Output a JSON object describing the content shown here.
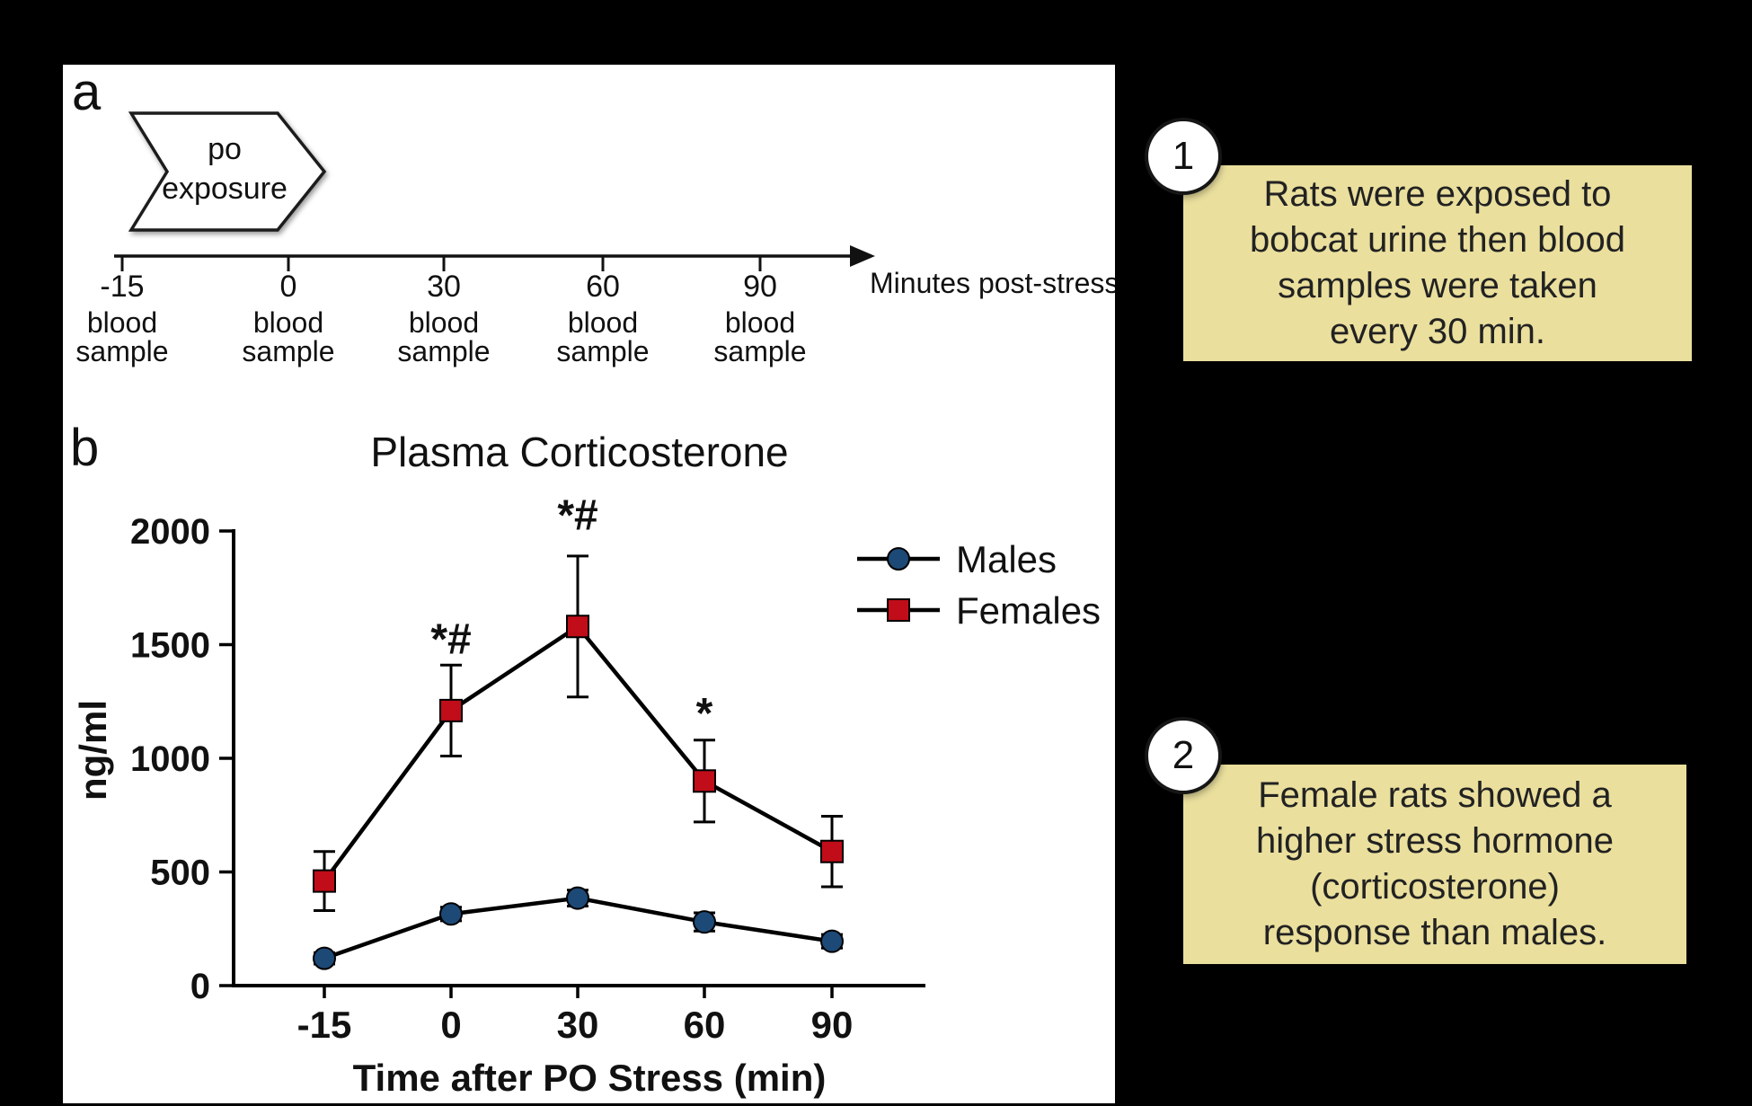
{
  "figure": {
    "panel_a_label": "a",
    "panel_b_label": "b",
    "timeline": {
      "banner": {
        "line1": "po",
        "line2": "exposure"
      },
      "axis_label": "Minutes post-stress",
      "ticks": [
        {
          "time": "-15",
          "label_line1": "blood",
          "label_line2": "sample"
        },
        {
          "time": "0",
          "label_line1": "blood",
          "label_line2": "sample"
        },
        {
          "time": "30",
          "label_line1": "blood",
          "label_line2": "sample"
        },
        {
          "time": "60",
          "label_line1": "blood",
          "label_line2": "sample"
        },
        {
          "time": "90",
          "label_line1": "blood",
          "label_line2": "sample"
        }
      ]
    }
  },
  "chart_data": {
    "type": "line",
    "title": "Plasma Corticosterone",
    "xlabel": "Time after PO Stress (min)",
    "ylabel": "ng/ml",
    "x": [
      -15,
      0,
      30,
      60,
      90
    ],
    "x_tick_labels": [
      "-15",
      "0",
      "30",
      "60",
      "90"
    ],
    "ylim": [
      0,
      2000
    ],
    "y_ticks": [
      0,
      500,
      1000,
      1500,
      2000
    ],
    "grid": false,
    "legend_position": "top-right",
    "series": [
      {
        "name": "Males",
        "marker": "circle",
        "marker_color": "#1d4977",
        "line_color": "#000000",
        "values": [
          120,
          315,
          385,
          280,
          195
        ],
        "errors": [
          25,
          30,
          35,
          40,
          30
        ]
      },
      {
        "name": "Females",
        "marker": "square",
        "marker_color": "#c00d19",
        "line_color": "#000000",
        "values": [
          460,
          1210,
          1580,
          900,
          590
        ],
        "errors": [
          130,
          200,
          310,
          180,
          155
        ]
      }
    ],
    "annotations": [
      {
        "x": 0,
        "y": 1460,
        "text": "*#"
      },
      {
        "x": 30,
        "y": 2005,
        "text": "*#"
      },
      {
        "x": 60,
        "y": 1135,
        "text": "*"
      }
    ]
  },
  "notes": [
    {
      "number": "1",
      "text": "Rats were exposed to\nbobcat urine then blood\nsamples were taken\nevery 30 min."
    },
    {
      "number": "2",
      "text": "Female rats showed a\nhigher stress hormone\n(corticosterone)\nresponse than males."
    }
  ],
  "colors": {
    "background": "#000000",
    "panel_bg": "#ffffff",
    "note_bg": "#eadf9d",
    "males": "#1d4977",
    "females": "#c00d19",
    "axis": "#000000"
  }
}
